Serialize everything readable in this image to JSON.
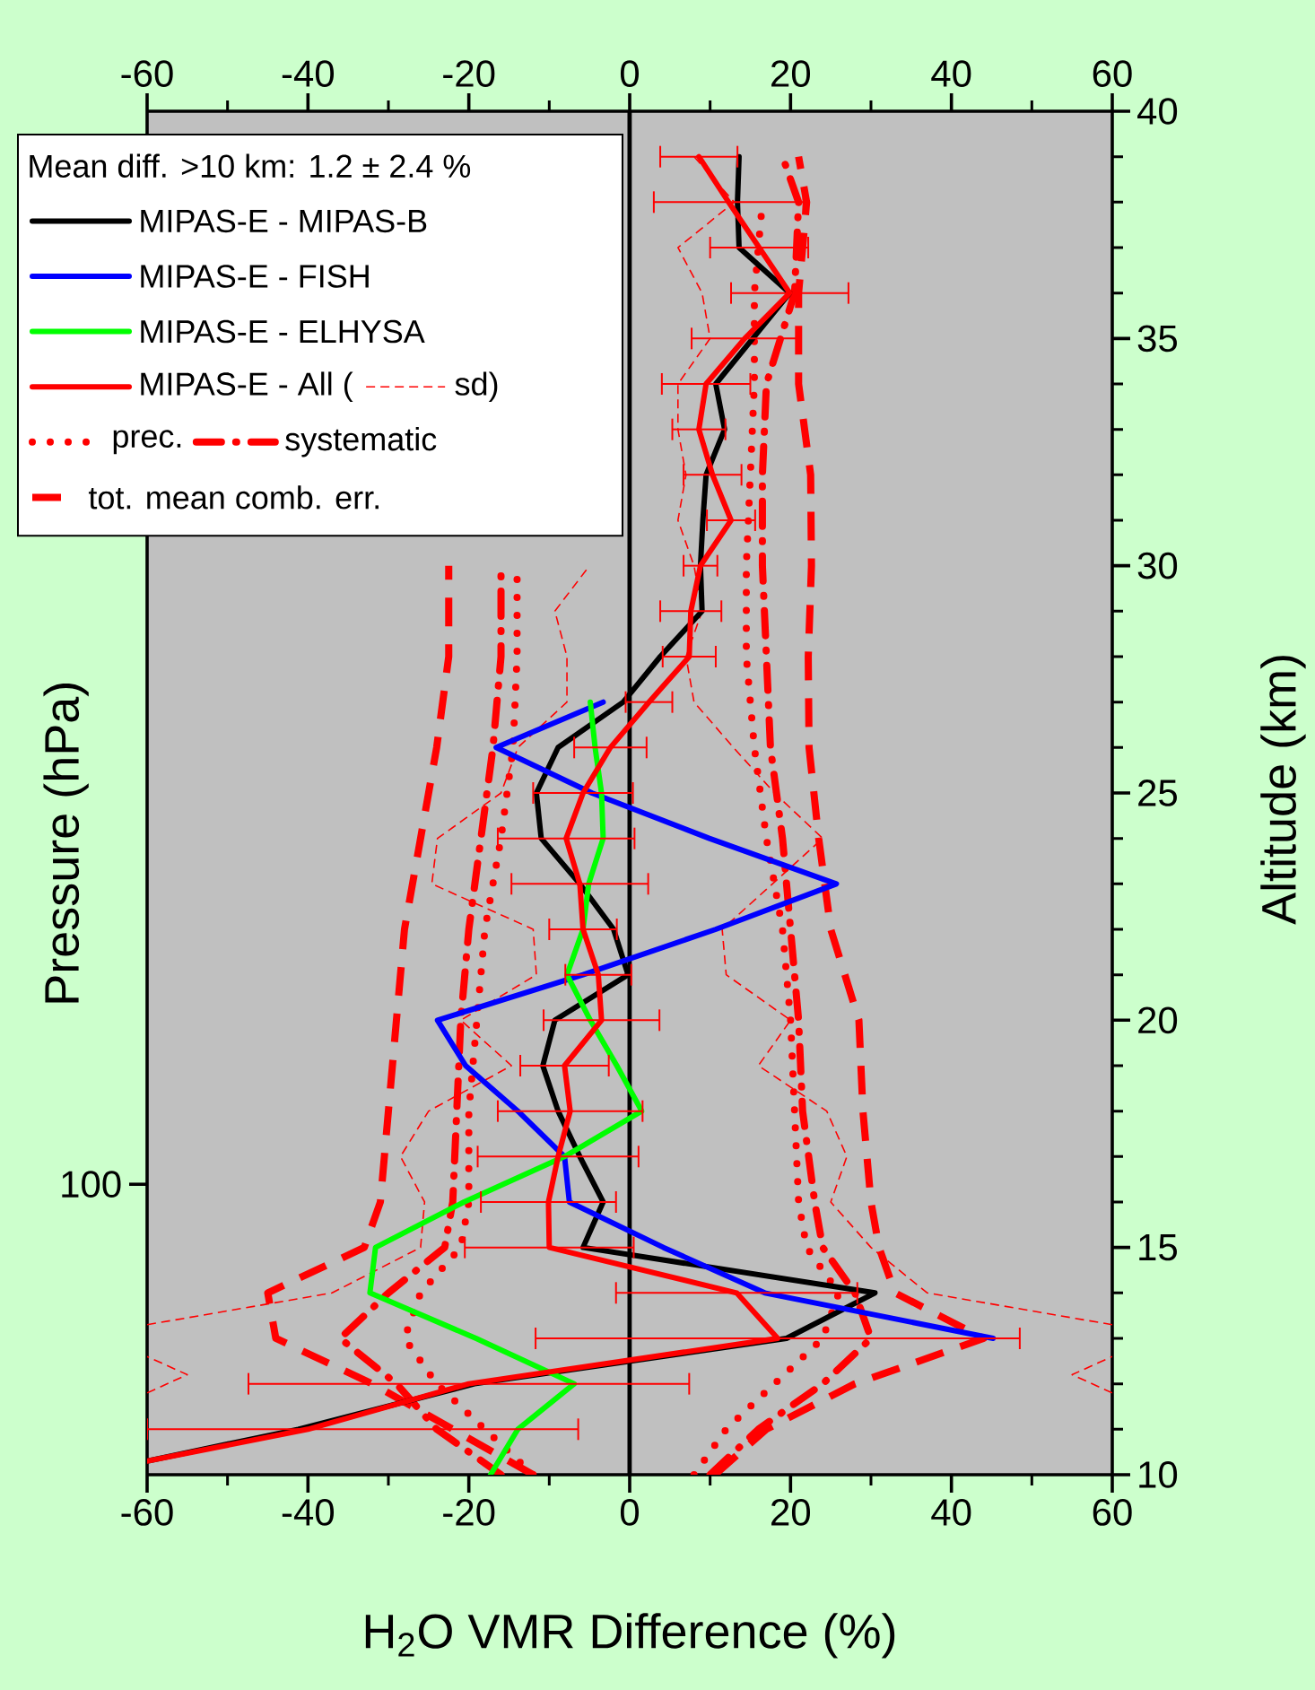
{
  "chart_data": {
    "type": "line",
    "xlabel": "H$_{2}$O VMR Difference (%)",
    "ylabel": "Pressure (hPa)",
    "y2label": "Altitude (km)",
    "legend_title": "Mean diff. >10 km: 1.2 ± 2.4 %",
    "legend": "top left",
    "xlim": [
      -60,
      60
    ],
    "xticks": [
      -60,
      -40,
      -20,
      0,
      20,
      40,
      60
    ],
    "x2lim": [
      -60,
      60
    ],
    "x2ticks": [
      -60,
      -40,
      -20,
      0,
      20,
      40,
      60
    ],
    "annotations": [
      "100"
    ],
    "y2lim": [
      10,
      40
    ],
    "y2ticks": [
      10,
      15,
      20,
      25,
      30,
      35,
      40
    ],
    "ref_lines": [
      {
        "axis": "x",
        "value": 0
      }
    ],
    "series": [
      {
        "name": "tot. mean comb. err.",
        "color": "#ff0000",
        "line_style": "dashed",
        "axis": "y2",
        "x": [
          10.6,
          17,
          28,
          44,
          33,
          31,
          30,
          29,
          28.5,
          25,
          23.5,
          22.3,
          22.2,
          22.6,
          22.5,
          21,
          21,
          22,
          21
        ],
        "values": [
          10,
          11,
          12,
          13,
          14,
          15,
          16,
          18,
          20,
          22,
          24,
          26,
          28,
          30,
          32,
          34,
          36,
          38,
          39
        ]
      },
      {
        "color": "#ff0000",
        "line_style": "dashed",
        "axis": "y2",
        "x": [
          -12,
          -22,
          -32,
          -44,
          -45,
          -33,
          -31,
          -30,
          -29,
          -28,
          -26,
          -24,
          -22.5,
          -22.5
        ],
        "values": [
          10,
          11,
          12,
          13,
          14,
          15,
          16,
          18,
          20,
          22,
          24,
          26,
          28,
          30
        ]
      },
      {
        "name": "systematic",
        "color": "#ff0000",
        "line_style": "dashdot",
        "axis": "y2",
        "x": [
          10,
          16,
          24,
          30,
          28,
          24,
          23,
          21.5,
          21,
          20,
          19,
          17.5,
          17,
          16.5,
          16.5,
          17,
          20.5,
          21,
          19
        ],
        "values": [
          10,
          11,
          12,
          13,
          14,
          15,
          16,
          18,
          20,
          22,
          24,
          26,
          28,
          30,
          32,
          34,
          36,
          38,
          39
        ]
      },
      {
        "color": "#ff0000",
        "line_style": "dashdot",
        "axis": "y2",
        "x": [
          -16,
          -24,
          -29,
          -36,
          -30,
          -23,
          -22,
          -21.5,
          -21,
          -20,
          -18.5,
          -17,
          -16,
          -16
        ],
        "values": [
          10,
          11,
          12,
          13,
          14,
          15,
          16,
          18,
          20,
          22,
          24,
          26,
          28,
          30
        ]
      },
      {
        "name": "prec.",
        "color": "#ff0000",
        "line_style": "dotted",
        "axis": "y2",
        "x": [
          8,
          12,
          18,
          24,
          26,
          22,
          21,
          20.5,
          20,
          19,
          17,
          15.5,
          14.5,
          14.5,
          15,
          15.5,
          15.5,
          16.5
        ],
        "values": [
          10,
          11,
          12,
          13,
          14,
          15,
          16,
          18,
          20,
          22,
          24,
          26,
          28,
          30,
          32,
          34,
          36,
          38
        ]
      },
      {
        "color": "#ff0000",
        "line_style": "dotted",
        "axis": "y2",
        "x": [
          -12,
          -18,
          -24,
          -28,
          -26,
          -21,
          -20,
          -20,
          -19,
          -18,
          -16,
          -14.5,
          -14,
          -14
        ],
        "values": [
          10,
          11,
          12,
          13,
          14,
          15,
          16,
          18,
          20,
          22,
          24,
          26,
          28,
          30
        ]
      },
      {
        "name": "sd)",
        "color": "#ff0000",
        "line_style": "thin dashed",
        "axis": "y2",
        "x": [
          60,
          55,
          60,
          null,
          60,
          37,
          30,
          25,
          27,
          24.5,
          16,
          20,
          12,
          11.5,
          24,
          18,
          12.9,
          8,
          7,
          9,
          8,
          6,
          7,
          6,
          6,
          10,
          9,
          6,
          13,
          8
        ],
        "values": [
          11.8,
          12.2,
          12.6,
          null,
          13.3,
          14,
          15,
          16,
          17,
          18,
          19,
          20,
          21,
          22,
          24,
          25,
          26,
          27,
          28,
          29,
          30,
          31,
          32,
          33,
          34,
          35,
          36,
          37,
          38,
          39
        ]
      },
      {
        "color": "#ff0000",
        "line_style": "thin dashed",
        "axis": "y2",
        "x": [
          -60,
          -55,
          -60,
          null,
          -60,
          -37,
          -26,
          -25.5,
          -28.5,
          -25,
          -14.7,
          -21,
          -11.6,
          -12,
          -24.6,
          -23.9,
          -16,
          -13.9,
          -7.8,
          -7.8,
          -9.3,
          -5
        ],
        "values": [
          11.8,
          12.2,
          12.6,
          null,
          13.3,
          14,
          15,
          16,
          17,
          18,
          19,
          20,
          21,
          22,
          23,
          24,
          25,
          26,
          27,
          28,
          29,
          30
        ]
      },
      {
        "name": "MIPAS-E - MIPAS-B",
        "color": "#000000",
        "line_style": "solid",
        "axis": "y2",
        "x": [
          13.6,
          13.4,
          13.6,
          19.9,
          15.3,
          10.7,
          11.8,
          9.5,
          9.1,
          8.8,
          9.0,
          3.8,
          -0.8,
          -8.9,
          -11.6,
          -11.0,
          -6.2,
          -2.0,
          -0.2,
          -9.3,
          -10.8,
          -8.9,
          -6.2,
          -3.3,
          -5.8,
          30.5,
          19.5,
          -19.3,
          -41.2,
          -60
        ],
        "values": [
          39,
          38,
          37,
          36,
          35,
          34,
          33,
          32,
          31,
          30,
          29,
          28,
          27,
          26,
          25,
          24,
          23,
          22,
          21,
          20,
          19,
          18,
          17,
          16,
          15,
          14,
          13,
          12,
          11,
          10.3
        ]
      },
      {
        "name": "MIPAS-E - FISH",
        "color": "#0000ff",
        "line_style": "solid",
        "axis": "y2",
        "x": [
          -3.3,
          -16.6,
          -4.7,
          9.9,
          25.7,
          10.7,
          -5.8,
          -23.9,
          -20.4,
          -13.9,
          -8.1,
          -7.5,
          4.2,
          16.8,
          45.2
        ],
        "values": [
          27,
          26,
          25,
          24,
          23,
          22,
          21,
          20,
          19,
          18,
          17,
          16,
          15,
          14,
          13
        ]
      },
      {
        "name": "MIPAS-E - ELHYSA",
        "color": "#00ff00",
        "line_style": "solid",
        "axis": "y2",
        "x": [
          -4.9,
          -4.3,
          -3.5,
          -3.3,
          -5.1,
          -5.8,
          -7.8,
          -4.9,
          -1.6,
          1.5,
          -8.1,
          -20.6,
          -31.6,
          -32.3,
          -19.1,
          -6.9,
          -13.9,
          -17.3
        ],
        "values": [
          27,
          26,
          25,
          24,
          23,
          22,
          21,
          20,
          19,
          18,
          17,
          16,
          15,
          14,
          13,
          12,
          11,
          10
        ]
      },
      {
        "name": "MIPAS-E - All (",
        "color": "#ff0000",
        "line_style": "solid",
        "axis": "y2",
        "x": [
          8.6,
          12.3,
          16.1,
          19.9,
          14.3,
          9.5,
          8.6,
          10.3,
          12.6,
          8.8,
          7.6,
          7.4,
          2.4,
          -2.4,
          -5.8,
          -7.9,
          -6.2,
          -5.8,
          -3.9,
          -3.5,
          -8.1,
          -7.4,
          -8.9,
          -10.1,
          -10.0,
          13.3,
          18.4,
          -20.0,
          -40.0,
          -60
        ],
        "values": [
          39,
          38,
          37,
          36,
          35,
          34,
          33,
          32,
          31,
          30,
          29,
          28,
          27,
          26,
          25,
          24,
          23,
          22,
          21,
          20,
          19,
          18,
          17,
          16,
          15,
          14,
          13,
          12,
          11,
          10.3
        ],
        "xerrors": [
          4.8,
          9.3,
          6.1,
          7.3,
          6.6,
          5.5,
          3.3,
          3.6,
          3.0,
          2.1,
          3.8,
          3.3,
          2.9,
          4.5,
          6.2,
          8.5,
          8.5,
          4.2,
          4.1,
          7.2,
          5.5,
          9.0,
          10.0,
          8.4,
          10.5,
          15.0,
          30.1,
          27.4,
          [
            -60,
            -6.4
          ],
          null
        ]
      }
    ]
  }
}
